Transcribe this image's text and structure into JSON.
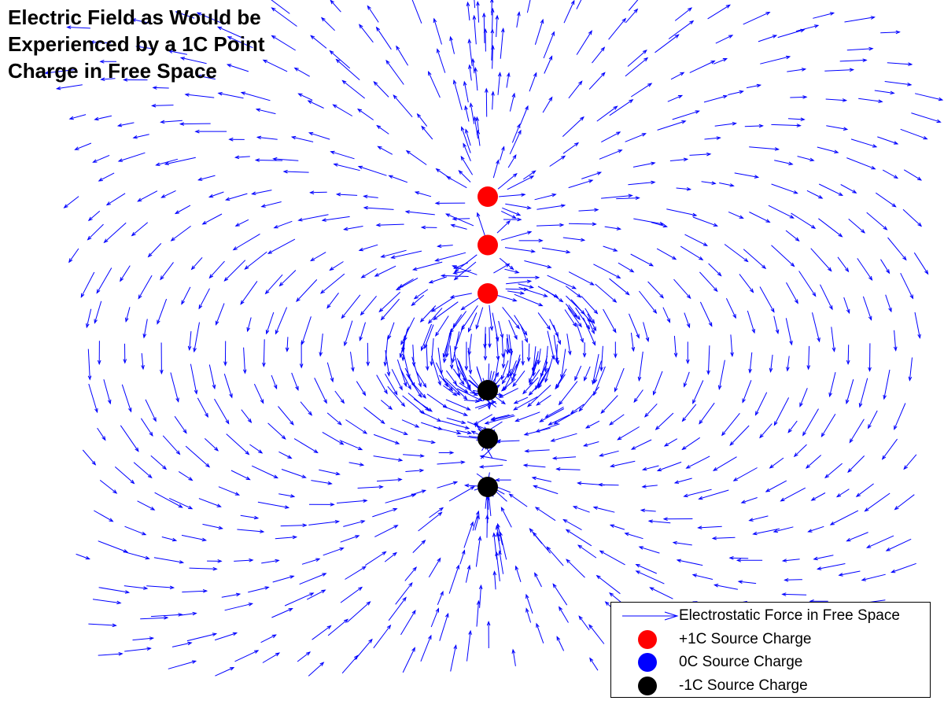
{
  "chart_data": {
    "type": "quiver",
    "title": "Electric Field as Would be Experienced by a 1C Point Charge in Free Space",
    "xlabel": "",
    "ylabel": "",
    "grid": false,
    "axes_visible": false,
    "arrow_color": "#0000ff",
    "vector_field": "electrostatic force on a +1C test charge from the source charges",
    "source_charges": [
      {
        "charge": 1,
        "x": 0,
        "y": 2
      },
      {
        "charge": 1,
        "x": 0,
        "y": 1
      },
      {
        "charge": 1,
        "x": 0,
        "y": 0
      },
      {
        "charge": -1,
        "x": 0,
        "y": -2
      },
      {
        "charge": -1,
        "x": 0,
        "y": -3
      },
      {
        "charge": -1,
        "x": 0,
        "y": -4
      }
    ],
    "legend_position": "bottom-right",
    "legend": [
      {
        "label": "Electrostatic Force in Free Space",
        "marker": "arrow",
        "color": "#0000ff"
      },
      {
        "label": "+1C Source Charge",
        "marker": "circle",
        "color": "#ff0000"
      },
      {
        "label": "0C Source Charge",
        "marker": "circle",
        "color": "#0000ff"
      },
      {
        "label": "-1C Source Charge",
        "marker": "circle",
        "color": "#000000"
      }
    ]
  }
}
